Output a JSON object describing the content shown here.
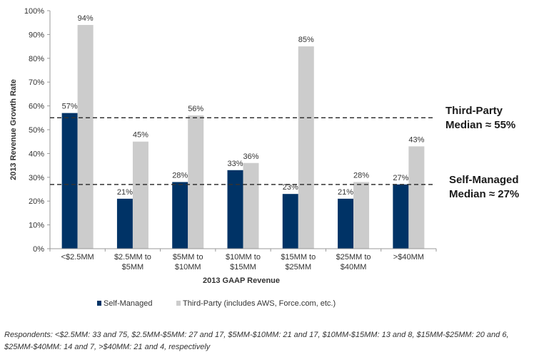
{
  "chart_data": {
    "type": "bar",
    "categories": [
      "<$2.5MM",
      "$2.5MM to $5MM",
      "$5MM to $10MM",
      "$10MM to $15MM",
      "$15MM to $25MM",
      "$25MM to $40MM",
      ">$40MM"
    ],
    "category_lines": [
      [
        "<$2.5MM"
      ],
      [
        "$2.5MM to",
        "$5MM"
      ],
      [
        "$5MM to",
        "$10MM"
      ],
      [
        "$10MM to",
        "$15MM"
      ],
      [
        "$15MM to",
        "$25MM"
      ],
      [
        "$25MM to",
        "$40MM"
      ],
      [
        ">$40MM"
      ]
    ],
    "series": [
      {
        "name": "Self-Managed",
        "values": [
          57,
          21,
          28,
          33,
          23,
          21,
          27
        ],
        "labels": [
          "57%",
          "21%",
          "28%",
          "33%",
          "23%",
          "21%",
          "27%"
        ],
        "color": "#003366"
      },
      {
        "name": "Third-Party (includes AWS, Force.com, etc.)",
        "values": [
          94,
          45,
          56,
          36,
          85,
          28,
          43
        ],
        "labels": [
          "94%",
          "45%",
          "56%",
          "36%",
          "85%",
          "28%",
          "43%"
        ],
        "color": "#cccccc"
      }
    ],
    "xlabel": "2013 GAAP Revenue",
    "ylabel": "2013 Revenue Growth Rate",
    "ylim": [
      0,
      100
    ],
    "yticks": [
      0,
      10,
      20,
      30,
      40,
      50,
      60,
      70,
      80,
      90,
      100
    ],
    "ytick_labels": [
      "0%",
      "10%",
      "20%",
      "30%",
      "40%",
      "50%",
      "60%",
      "70%",
      "80%",
      "90%",
      "100%"
    ],
    "reference_lines": [
      {
        "value": 55,
        "label_lines": [
          "Third-Party",
          "Median ≈ 55%"
        ]
      },
      {
        "value": 27,
        "label_lines": [
          "Self-Managed",
          "Median ≈ 27%"
        ]
      }
    ],
    "legend_position": "bottom",
    "grid": false
  },
  "footnote": "Respondents: <$2.5MM: 33 and 75, $2.5MM-$5MM: 27 and 17, $5MM-$10MM: 21 and 17, $10MM-$15MM: 13 and 8, $15MM-$25MM: 20 and 6, $25MM-$40MM: 14 and 7, >$40MM: 21 and 4, respectively"
}
